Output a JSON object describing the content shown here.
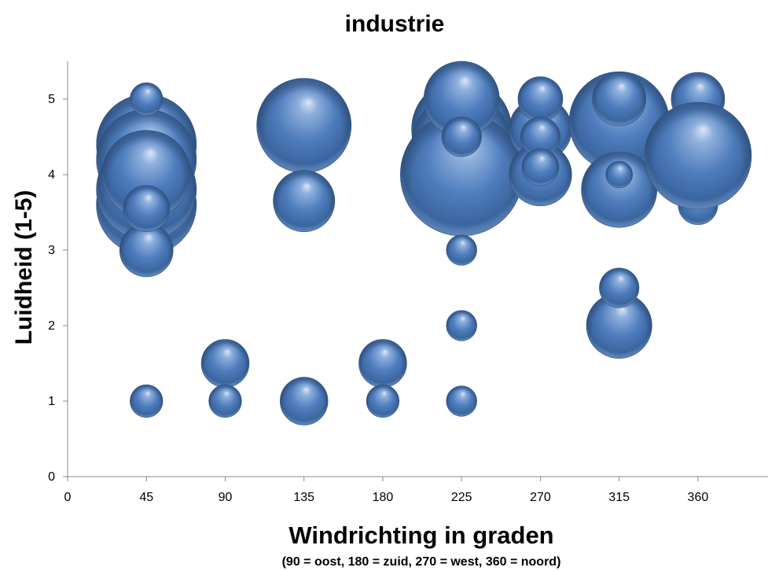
{
  "chart_data": {
    "type": "bubble",
    "title": "industrie",
    "xlabel": "Windrichting in graden",
    "xlabel_note": "(90 = oost, 180 = zuid, 270 = west, 360 = noord)",
    "ylabel": "Luidheid (1-5)",
    "xlim": [
      0,
      400
    ],
    "ylim": [
      0,
      5.5
    ],
    "xticks": [
      0,
      45,
      90,
      135,
      180,
      225,
      270,
      315,
      360
    ],
    "yticks": [
      0,
      1,
      2,
      3,
      4,
      5
    ],
    "bubble_color": "#4a77b4",
    "series": [
      {
        "points": [
          {
            "x": 45,
            "y": 3.6,
            "size": 14
          },
          {
            "x": 45,
            "y": 4.4,
            "size": 14
          },
          {
            "x": 45,
            "y": 4.2,
            "size": 14
          },
          {
            "x": 45,
            "y": 3.8,
            "size": 14
          },
          {
            "x": 45,
            "y": 4.0,
            "size": 11
          },
          {
            "x": 45,
            "y": 3.0,
            "size": 4
          },
          {
            "x": 45,
            "y": 3.55,
            "size": 3
          },
          {
            "x": 45,
            "y": 5.0,
            "size": 1.5
          },
          {
            "x": 45,
            "y": 1.0,
            "size": 1.5
          },
          {
            "x": 90,
            "y": 1.5,
            "size": 3.2
          },
          {
            "x": 90,
            "y": 1.0,
            "size": 1.5
          },
          {
            "x": 135,
            "y": 4.65,
            "size": 12.5
          },
          {
            "x": 135,
            "y": 3.65,
            "size": 5.3
          },
          {
            "x": 135,
            "y": 1.0,
            "size": 3.2
          },
          {
            "x": 180,
            "y": 1.5,
            "size": 3.2
          },
          {
            "x": 180,
            "y": 1.0,
            "size": 1.5
          },
          {
            "x": 225,
            "y": 4.6,
            "size": 14
          },
          {
            "x": 225,
            "y": 4.4,
            "size": 14
          },
          {
            "x": 225,
            "y": 4.0,
            "size": 21
          },
          {
            "x": 225,
            "y": 5.0,
            "size": 8
          },
          {
            "x": 225,
            "y": 4.5,
            "size": 2.2
          },
          {
            "x": 225,
            "y": 3.0,
            "size": 1.3
          },
          {
            "x": 225,
            "y": 2.0,
            "size": 1.3
          },
          {
            "x": 225,
            "y": 1.0,
            "size": 1.3
          },
          {
            "x": 270,
            "y": 4.6,
            "size": 5.5
          },
          {
            "x": 270,
            "y": 4.0,
            "size": 5.5
          },
          {
            "x": 270,
            "y": 5.0,
            "size": 2.8
          },
          {
            "x": 270,
            "y": 4.5,
            "size": 2.2
          },
          {
            "x": 270,
            "y": 4.1,
            "size": 1.9
          },
          {
            "x": 315,
            "y": 4.7,
            "size": 14
          },
          {
            "x": 315,
            "y": 3.8,
            "size": 8
          },
          {
            "x": 315,
            "y": 5.0,
            "size": 4
          },
          {
            "x": 315,
            "y": 4.0,
            "size": 1
          },
          {
            "x": 315,
            "y": 2.0,
            "size": 6
          },
          {
            "x": 315,
            "y": 2.5,
            "size": 2.2
          },
          {
            "x": 360,
            "y": 5.0,
            "size": 4
          },
          {
            "x": 360,
            "y": 3.6,
            "size": 2.2
          },
          {
            "x": 360,
            "y": 4.25,
            "size": 16
          }
        ]
      }
    ]
  }
}
